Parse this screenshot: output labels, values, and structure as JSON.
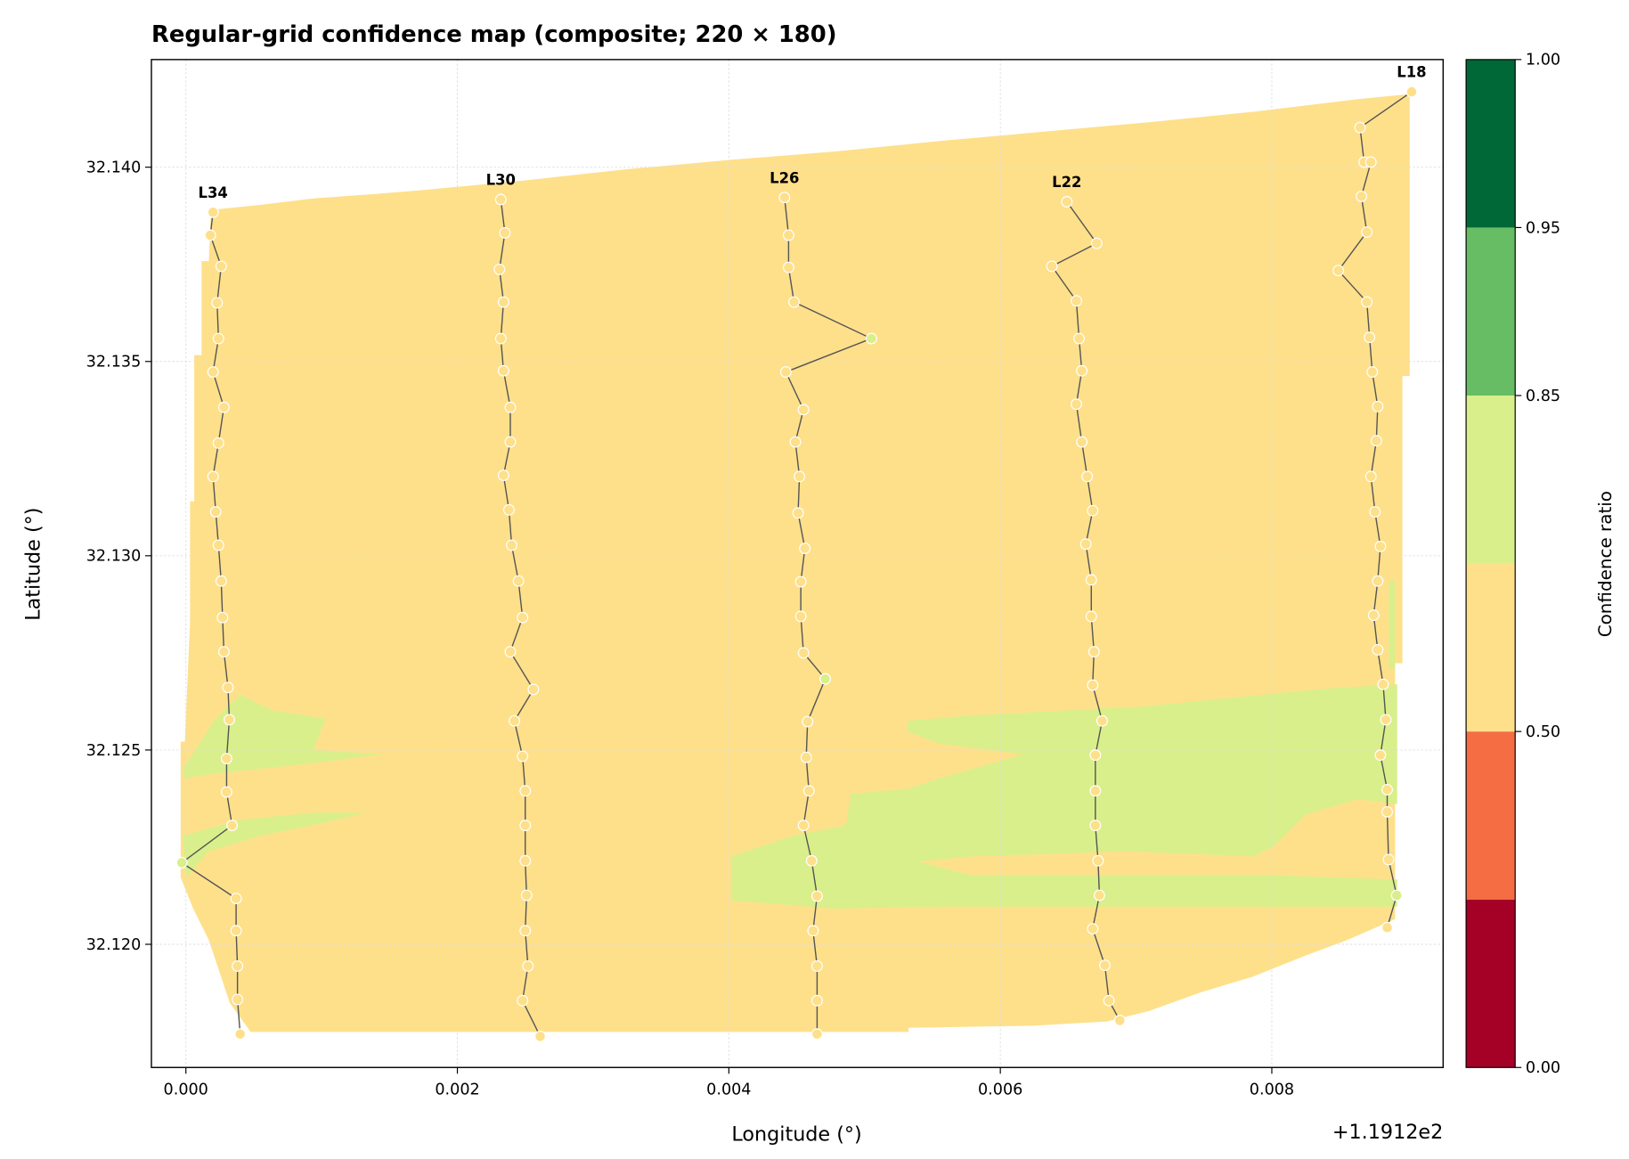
{
  "chart_data": {
    "type": "line",
    "title": "Regular-grid confidence map (composite; 220 × 180)",
    "xlabel": "Longitude (°)",
    "ylabel": "Latitude (°)",
    "x_offset_text": "+1.1912e2",
    "xlim": [
      -0.000254,
      0.009262
    ],
    "ylim": [
      32.11683,
      32.14277
    ],
    "xticks": [
      {
        "value": 0,
        "label": "0.000"
      },
      0.002,
      0.004,
      0.006,
      0.008
    ],
    "yticks": [
      {
        "value": 32.12,
        "label": "32.120"
      },
      32.125,
      {
        "value": 32.13,
        "label": "32.130"
      },
      32.135,
      {
        "value": 32.14,
        "label": "32.140"
      }
    ],
    "grid": true,
    "line_color": "#555555",
    "colorbar": {
      "label": "Confidence ratio",
      "boundaries": [
        0,
        0.3,
        0.5,
        0.7,
        0.85,
        0.95,
        1.0
      ],
      "colors": [
        "#a50026",
        "#f46d43",
        "#fee08b",
        "#d9ef8b",
        "#66bd63",
        "#006837"
      ],
      "ticks": [
        {
          "value": 0,
          "label": "0.00"
        },
        {
          "value": 0.5,
          "label": "0.50"
        },
        0.85,
        0.95,
        {
          "value": 1,
          "label": "1.00"
        }
      ]
    },
    "series": [
      {
        "name": "L34",
        "x": [
          0.0002,
          0.00018,
          0.00026,
          0.00023,
          0.00024,
          0.0002,
          0.00028,
          0.00024,
          0.0002,
          0.00022,
          0.00024,
          0.00026,
          0.00027,
          0.00028,
          0.00031,
          0.00032,
          0.0003,
          0.0003,
          0.00034,
          -3e-05,
          0.00037,
          0.00037,
          0.00038,
          0.00038,
          0.0004
        ],
        "y": [
          32.13884,
          32.13825,
          32.13745,
          32.13651,
          32.13559,
          32.13473,
          32.13382,
          32.1329,
          32.13204,
          32.13113,
          32.13027,
          32.12935,
          32.12841,
          32.12753,
          32.12661,
          32.12578,
          32.12478,
          32.12392,
          32.12306,
          32.1221,
          32.12118,
          32.12035,
          32.11944,
          32.11858,
          32.11769
        ],
        "confidence": [
          0.6,
          0.6,
          0.6,
          0.6,
          0.6,
          0.6,
          0.6,
          0.6,
          0.6,
          0.6,
          0.6,
          0.6,
          0.6,
          0.6,
          0.6,
          0.6,
          0.6,
          0.6,
          0.6,
          0.75,
          0.6,
          0.6,
          0.6,
          0.6,
          0.6
        ]
      },
      {
        "name": "L30",
        "x": [
          0.00232,
          0.00235,
          0.00231,
          0.00234,
          0.00232,
          0.00234,
          0.00239,
          0.00239,
          0.00234,
          0.00238,
          0.0024,
          0.00245,
          0.00248,
          0.00239,
          0.00256,
          0.00242,
          0.00248,
          0.0025,
          0.0025,
          0.0025,
          0.00251,
          0.0025,
          0.00252,
          0.00248,
          0.00261
        ],
        "y": [
          32.13917,
          32.13831,
          32.13737,
          32.13653,
          32.13559,
          32.13476,
          32.13382,
          32.13293,
          32.13207,
          32.13118,
          32.13027,
          32.12935,
          32.12841,
          32.12753,
          32.12656,
          32.12575,
          32.12484,
          32.12395,
          32.12306,
          32.12215,
          32.12126,
          32.12035,
          32.11944,
          32.11855,
          32.11763
        ],
        "confidence": [
          0.6,
          0.6,
          0.6,
          0.6,
          0.6,
          0.6,
          0.6,
          0.6,
          0.6,
          0.6,
          0.6,
          0.6,
          0.6,
          0.6,
          0.6,
          0.6,
          0.6,
          0.6,
          0.6,
          0.6,
          0.6,
          0.6,
          0.6,
          0.6,
          0.6
        ]
      },
      {
        "name": "L26",
        "x": [
          0.00441,
          0.00444,
          0.00444,
          0.00448,
          0.00505,
          0.00442,
          0.00455,
          0.00449,
          0.00452,
          0.00451,
          0.00456,
          0.00453,
          0.00453,
          0.00455,
          0.00471,
          0.00458,
          0.00457,
          0.00459,
          0.00455,
          0.00461,
          0.00465,
          0.00462,
          0.00465,
          0.00465,
          0.00465
        ],
        "y": [
          32.13922,
          32.13825,
          32.13742,
          32.13653,
          32.13559,
          32.13473,
          32.13376,
          32.13293,
          32.13204,
          32.1311,
          32.13019,
          32.12933,
          32.12844,
          32.1275,
          32.12683,
          32.12573,
          32.12481,
          32.12395,
          32.12306,
          32.12215,
          32.12124,
          32.12035,
          32.11944,
          32.11855,
          32.11769
        ],
        "confidence": [
          0.6,
          0.6,
          0.6,
          0.6,
          0.75,
          0.6,
          0.6,
          0.6,
          0.6,
          0.6,
          0.6,
          0.6,
          0.6,
          0.6,
          0.75,
          0.6,
          0.6,
          0.6,
          0.6,
          0.6,
          0.6,
          0.6,
          0.6,
          0.6,
          0.6
        ]
      },
      {
        "name": "L22",
        "x": [
          0.00649,
          0.00671,
          0.00638,
          0.00656,
          0.00658,
          0.0066,
          0.00656,
          0.0066,
          0.00664,
          0.00668,
          0.00663,
          0.00667,
          0.00667,
          0.00669,
          0.00668,
          0.00675,
          0.0067,
          0.0067,
          0.0067,
          0.00672,
          0.00673,
          0.00668,
          0.00677,
          0.0068,
          0.00688
        ],
        "y": [
          32.13911,
          32.13804,
          32.13745,
          32.13656,
          32.13559,
          32.13476,
          32.1339,
          32.13293,
          32.13204,
          32.13116,
          32.1303,
          32.12938,
          32.12844,
          32.12753,
          32.12667,
          32.12575,
          32.12487,
          32.12395,
          32.12306,
          32.12215,
          32.12126,
          32.1204,
          32.11946,
          32.11855,
          32.11804
        ],
        "confidence": [
          0.6,
          0.6,
          0.6,
          0.6,
          0.6,
          0.6,
          0.6,
          0.6,
          0.6,
          0.6,
          0.6,
          0.6,
          0.6,
          0.6,
          0.6,
          0.6,
          0.6,
          0.6,
          0.6,
          0.6,
          0.6,
          0.6,
          0.6,
          0.6,
          0.6
        ]
      },
      {
        "name": "L18",
        "x": [
          0.00903,
          0.00865,
          0.00868,
          0.00873,
          0.00866,
          0.0087,
          0.00849,
          0.0087,
          0.00872,
          0.00874,
          0.00878,
          0.00877,
          0.00873,
          0.00876,
          0.0088,
          0.00878,
          0.00875,
          0.00878,
          0.00882,
          0.00884,
          0.0088,
          0.00885,
          0.00885,
          0.00886,
          0.00892,
          0.00885
        ],
        "y": [
          32.14194,
          32.14102,
          32.14013,
          32.14013,
          32.13925,
          32.13833,
          32.13734,
          32.13653,
          32.13562,
          32.13473,
          32.13384,
          32.13296,
          32.13204,
          32.13113,
          32.13024,
          32.12935,
          32.12847,
          32.12758,
          32.12669,
          32.12578,
          32.12487,
          32.12398,
          32.12341,
          32.12218,
          32.12126,
          32.12043
        ],
        "confidence": [
          0.6,
          0.6,
          0.6,
          0.6,
          0.6,
          0.6,
          0.6,
          0.6,
          0.6,
          0.6,
          0.6,
          0.6,
          0.6,
          0.6,
          0.6,
          0.6,
          0.6,
          0.6,
          0.6,
          0.6,
          0.6,
          0.6,
          0.6,
          0.6,
          0.75,
          0.6
        ]
      }
    ]
  }
}
